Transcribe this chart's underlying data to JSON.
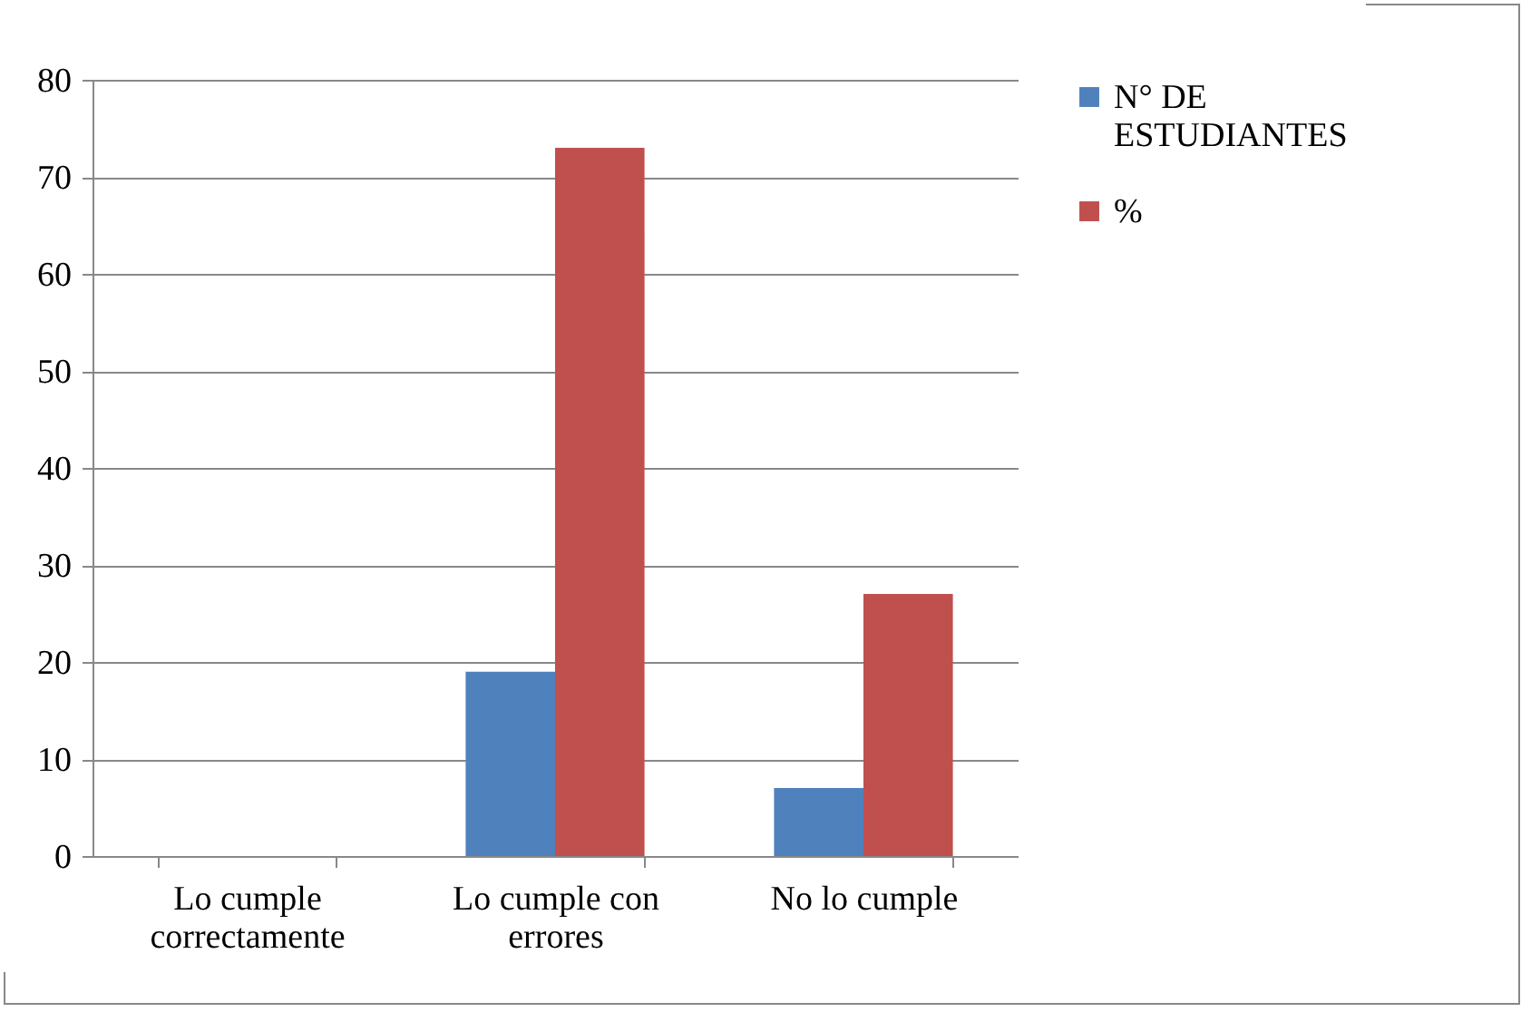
{
  "chart_data": {
    "type": "bar",
    "categories": [
      "Lo cumple correctamente",
      "Lo cumple con errores",
      "No lo cumple"
    ],
    "series": [
      {
        "name": "N° DE ESTUDIANTES",
        "color": "#4f81bd",
        "values": [
          0,
          19,
          7
        ]
      },
      {
        "name": "%",
        "color": "#c0504d",
        "values": [
          0,
          73,
          27
        ]
      }
    ],
    "ylim": [
      0,
      80
    ],
    "yticks": [
      0,
      10,
      20,
      30,
      40,
      50,
      60,
      70,
      80
    ],
    "grid": "y",
    "legend": "right"
  }
}
